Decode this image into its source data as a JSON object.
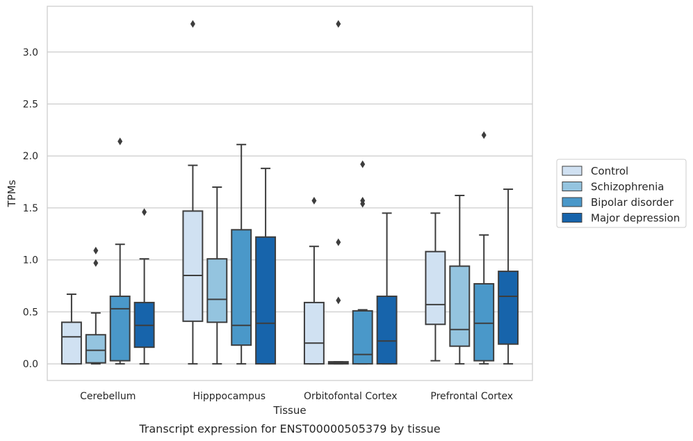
{
  "chart_data": {
    "type": "boxplot",
    "xlabel": "Tissue",
    "ylabel": "TPMs",
    "caption": "Transcript expression for ENST00000505379 by tissue",
    "ylim": [
      -0.16,
      3.44
    ],
    "yticks": [
      0.0,
      0.5,
      1.0,
      1.5,
      2.0,
      2.5,
      3.0
    ],
    "ytick_labels": [
      "0.0",
      "0.5",
      "1.0",
      "1.5",
      "2.0",
      "2.5",
      "3.0"
    ],
    "grid": "horizontal",
    "legend_position": "right",
    "categories": [
      "Cerebellum",
      "Hipppocampus",
      "Orbitofontal Cortex",
      "Prefrontal Cortex"
    ],
    "series": [
      {
        "name": "Control",
        "color": "#d0e1f2",
        "boxes": [
          {
            "min": 0.0,
            "q1": 0.0,
            "median": 0.26,
            "q3": 0.4,
            "max": 0.67,
            "outliers": []
          },
          {
            "min": 0.0,
            "q1": 0.41,
            "median": 0.85,
            "q3": 1.47,
            "max": 1.91,
            "outliers": [
              3.27
            ]
          },
          {
            "min": 0.0,
            "q1": 0.0,
            "median": 0.2,
            "q3": 0.59,
            "max": 1.13,
            "outliers": [
              1.57
            ]
          },
          {
            "min": 0.03,
            "q1": 0.38,
            "median": 0.57,
            "q3": 1.08,
            "max": 1.45,
            "outliers": []
          }
        ]
      },
      {
        "name": "Schizophrenia",
        "color": "#94c4df",
        "boxes": [
          {
            "min": 0.0,
            "q1": 0.01,
            "median": 0.13,
            "q3": 0.28,
            "max": 0.49,
            "outliers": [
              0.97,
              1.09
            ]
          },
          {
            "min": 0.0,
            "q1": 0.4,
            "median": 0.62,
            "q3": 1.01,
            "max": 1.7,
            "outliers": []
          },
          {
            "min": 0.0,
            "q1": 0.0,
            "median": 0.01,
            "q3": 0.02,
            "max": 0.02,
            "outliers": [
              0.61,
              1.17,
              3.27
            ]
          },
          {
            "min": 0.0,
            "q1": 0.17,
            "median": 0.33,
            "q3": 0.94,
            "max": 1.62,
            "outliers": []
          }
        ]
      },
      {
        "name": "Bipolar disorder",
        "color": "#4a98c9",
        "boxes": [
          {
            "min": 0.0,
            "q1": 0.03,
            "median": 0.53,
            "q3": 0.65,
            "max": 1.15,
            "outliers": [
              2.14
            ]
          },
          {
            "min": 0.0,
            "q1": 0.18,
            "median": 0.37,
            "q3": 1.29,
            "max": 2.11,
            "outliers": []
          },
          {
            "min": 0.0,
            "q1": 0.0,
            "median": 0.09,
            "q3": 0.51,
            "max": 0.52,
            "outliers": [
              1.54,
              1.57,
              1.92
            ]
          },
          {
            "min": 0.0,
            "q1": 0.03,
            "median": 0.39,
            "q3": 0.77,
            "max": 1.24,
            "outliers": [
              2.2
            ]
          }
        ]
      },
      {
        "name": "Major depression",
        "color": "#1764ab",
        "boxes": [
          {
            "min": 0.0,
            "q1": 0.16,
            "median": 0.37,
            "q3": 0.59,
            "max": 1.01,
            "outliers": [
              1.46
            ]
          },
          {
            "min": 0.0,
            "q1": 0.0,
            "median": 0.39,
            "q3": 1.22,
            "max": 1.88,
            "outliers": []
          },
          {
            "min": 0.0,
            "q1": 0.0,
            "median": 0.22,
            "q3": 0.65,
            "max": 1.45,
            "outliers": []
          },
          {
            "min": 0.0,
            "q1": 0.19,
            "median": 0.65,
            "q3": 0.89,
            "max": 1.68,
            "outliers": []
          }
        ]
      }
    ]
  }
}
